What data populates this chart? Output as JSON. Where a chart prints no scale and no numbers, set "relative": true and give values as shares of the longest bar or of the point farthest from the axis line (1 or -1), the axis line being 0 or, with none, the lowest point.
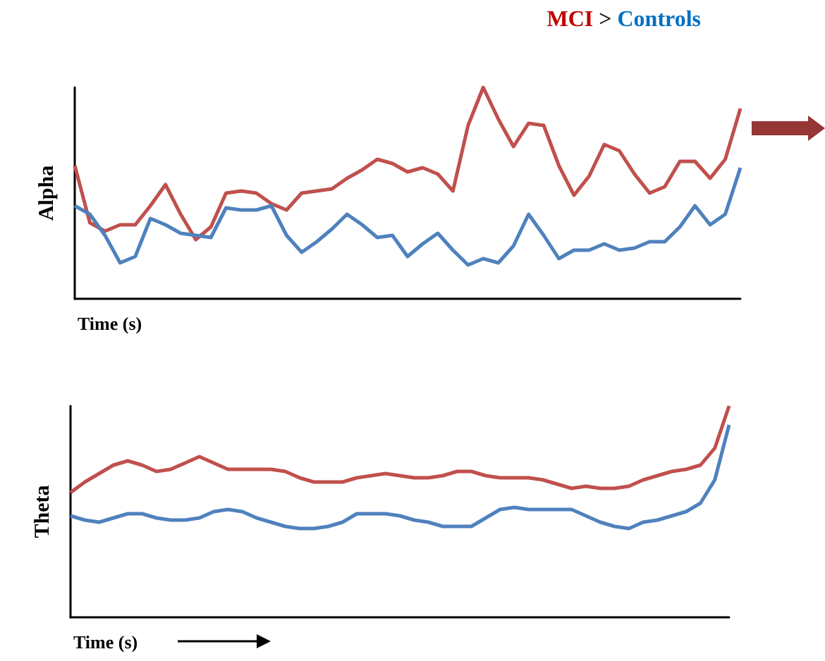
{
  "chart_data": [
    {
      "type": "line",
      "title": "MCI > Controls",
      "ylabel": "Alpha",
      "xlabel": "Time (s)",
      "relative": true,
      "marker": "none",
      "categories": [
        null,
        null,
        null,
        null,
        null,
        null,
        null,
        null,
        null,
        null,
        null,
        null,
        null,
        null,
        null,
        null,
        null,
        null,
        null,
        null,
        null,
        null,
        null,
        null,
        null,
        null,
        null,
        null,
        null,
        null,
        null,
        null,
        null,
        null,
        null,
        null,
        null,
        null,
        null,
        null,
        null,
        null,
        null,
        null,
        null
      ],
      "series": [
        {
          "color": "#c0504d",
          "values": [
            0.63,
            0.36,
            0.32,
            0.35,
            0.35,
            0.44,
            0.54,
            0.4,
            0.28,
            0.34,
            0.5,
            0.51,
            0.5,
            0.45,
            0.42,
            0.5,
            0.51,
            0.52,
            0.57,
            0.61,
            0.66,
            0.64,
            0.6,
            0.62,
            0.59,
            0.51,
            0.82,
            1.0,
            0.85,
            0.72,
            0.83,
            0.82,
            0.63,
            0.49,
            0.58,
            0.73,
            0.7,
            0.59,
            0.5,
            0.53,
            0.65,
            0.65,
            0.57,
            0.66,
            0.9
          ]
        },
        {
          "color": "#4f81bd",
          "values": [
            0.44,
            0.4,
            0.3,
            0.17,
            0.2,
            0.38,
            0.35,
            0.31,
            0.3,
            0.29,
            0.43,
            0.42,
            0.42,
            0.44,
            0.3,
            0.22,
            0.27,
            0.33,
            0.4,
            0.35,
            0.29,
            0.3,
            0.2,
            0.26,
            0.31,
            0.23,
            0.16,
            0.19,
            0.17,
            0.25,
            0.4,
            0.3,
            0.19,
            0.23,
            0.23,
            0.26,
            0.23,
            0.24,
            0.27,
            0.27,
            0.34,
            0.44,
            0.35,
            0.4,
            0.62
          ]
        }
      ]
    },
    {
      "type": "line",
      "ylabel": "Theta",
      "xlabel": "Time (s)",
      "relative": true,
      "marker": "none",
      "categories": [
        null,
        null,
        null,
        null,
        null,
        null,
        null,
        null,
        null,
        null,
        null,
        null,
        null,
        null,
        null,
        null,
        null,
        null,
        null,
        null,
        null,
        null,
        null,
        null,
        null,
        null,
        null,
        null,
        null,
        null,
        null,
        null,
        null,
        null,
        null,
        null,
        null,
        null,
        null,
        null,
        null,
        null,
        null,
        null,
        null,
        null,
        null
      ],
      "series": [
        {
          "color": "#c0504d",
          "values": [
            0.59,
            0.64,
            0.68,
            0.72,
            0.74,
            0.72,
            0.69,
            0.7,
            0.73,
            0.76,
            0.73,
            0.7,
            0.7,
            0.7,
            0.7,
            0.69,
            0.66,
            0.64,
            0.64,
            0.64,
            0.66,
            0.67,
            0.68,
            0.67,
            0.66,
            0.66,
            0.67,
            0.69,
            0.69,
            0.67,
            0.66,
            0.66,
            0.66,
            0.65,
            0.63,
            0.61,
            0.62,
            0.61,
            0.61,
            0.62,
            0.65,
            0.67,
            0.69,
            0.7,
            0.72,
            0.8,
            1.0
          ]
        },
        {
          "color": "#4f81bd",
          "values": [
            0.48,
            0.46,
            0.45,
            0.47,
            0.49,
            0.49,
            0.47,
            0.46,
            0.46,
            0.47,
            0.5,
            0.51,
            0.5,
            0.47,
            0.45,
            0.43,
            0.42,
            0.42,
            0.43,
            0.45,
            0.49,
            0.49,
            0.49,
            0.48,
            0.46,
            0.45,
            0.43,
            0.43,
            0.43,
            0.47,
            0.51,
            0.52,
            0.51,
            0.51,
            0.51,
            0.51,
            0.48,
            0.45,
            0.43,
            0.42,
            0.45,
            0.46,
            0.48,
            0.5,
            0.54,
            0.65,
            0.91
          ]
        }
      ]
    }
  ]
}
